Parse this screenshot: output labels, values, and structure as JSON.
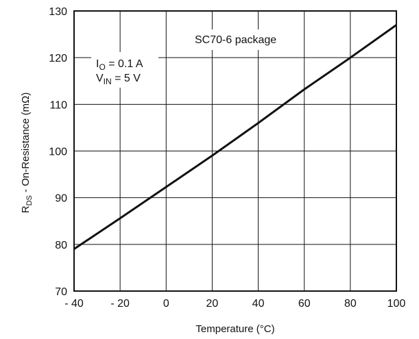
{
  "chart_data": {
    "type": "line",
    "title": "",
    "xlabel": "Temperature (°C)",
    "ylabel": {
      "main": "R",
      "sub": "DS",
      "rest": " - On-Resistance (mΩ)"
    },
    "xlim": [
      -40,
      100
    ],
    "ylim": [
      70,
      130
    ],
    "x_ticks": [
      -40,
      -20,
      0,
      20,
      40,
      60,
      80,
      100
    ],
    "x_tick_labels": [
      "- 40",
      "- 20",
      "0",
      "20",
      "40",
      "60",
      "80",
      "100"
    ],
    "y_ticks": [
      70,
      80,
      90,
      100,
      110,
      120,
      130
    ],
    "y_tick_labels": [
      "70",
      "80",
      "90",
      "100",
      "110",
      "120",
      "130"
    ],
    "grid": true,
    "series": [
      {
        "x": [
          -40,
          -20,
          0,
          20,
          40,
          60,
          80,
          100
        ],
        "y": [
          79,
          85.6,
          92.3,
          99,
          106,
          113.2,
          120,
          127
        ],
        "color": "#111111"
      }
    ],
    "annotations": {
      "package": "SC70-6 package",
      "io": {
        "main": "I",
        "sub": "O",
        "rest": " = 0.1 A"
      },
      "vin": {
        "main": "V",
        "sub": "IN",
        "rest": " = 5 V"
      }
    }
  }
}
